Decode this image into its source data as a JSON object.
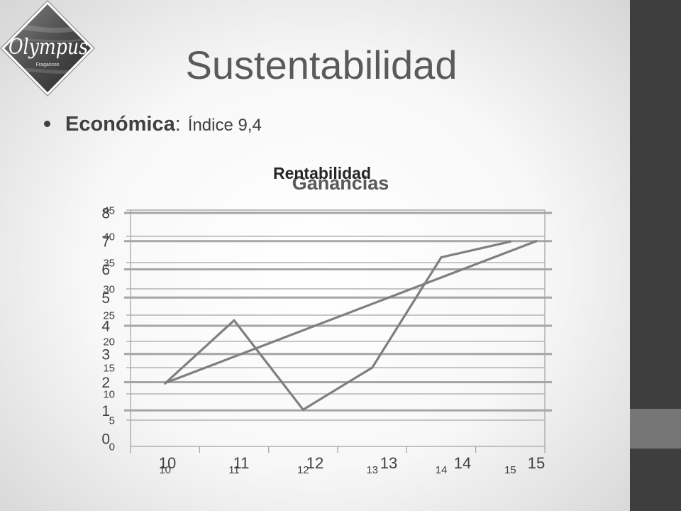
{
  "slide": {
    "title": "Sustentabilidad",
    "bullet_label": "Económica",
    "bullet_separator": ":",
    "bullet_text": "Índice 9,4"
  },
  "logo": {
    "wordmark": "Olympus",
    "tagline": "Fragances"
  },
  "theme": {
    "title_color": "#5a5a5a",
    "text_color": "#404040",
    "sidebar_color": "#3e3e3e",
    "sidebar_accent_color": "#767676",
    "series_color": "#7f7f7f",
    "gridline_color": "#a6a6a6"
  },
  "chart_data": [
    {
      "type": "line",
      "title": "Rentabilidad",
      "categories": [
        "10",
        "11",
        "12",
        "13",
        "14",
        "15"
      ],
      "series": [
        {
          "values": [
            12,
            24,
            7,
            15,
            36,
            39
          ]
        }
      ],
      "y_ticks": [
        "0",
        "5",
        "10",
        "15",
        "20",
        "25",
        "30",
        "35",
        "40",
        "45"
      ],
      "ylim": [
        0,
        45
      ],
      "grid": true,
      "legend": "none"
    },
    {
      "type": "line",
      "title": "Ganancias",
      "categories": [
        "10",
        "11",
        "12",
        "13",
        "14",
        "15"
      ],
      "series": [
        {
          "values": [
            2,
            3,
            4,
            5,
            6,
            7
          ]
        }
      ],
      "y_ticks": [
        "0",
        "1",
        "2",
        "3",
        "4",
        "5",
        "6",
        "7",
        "8"
      ],
      "ylim": [
        0,
        8
      ],
      "grid": true,
      "legend": "none"
    }
  ]
}
